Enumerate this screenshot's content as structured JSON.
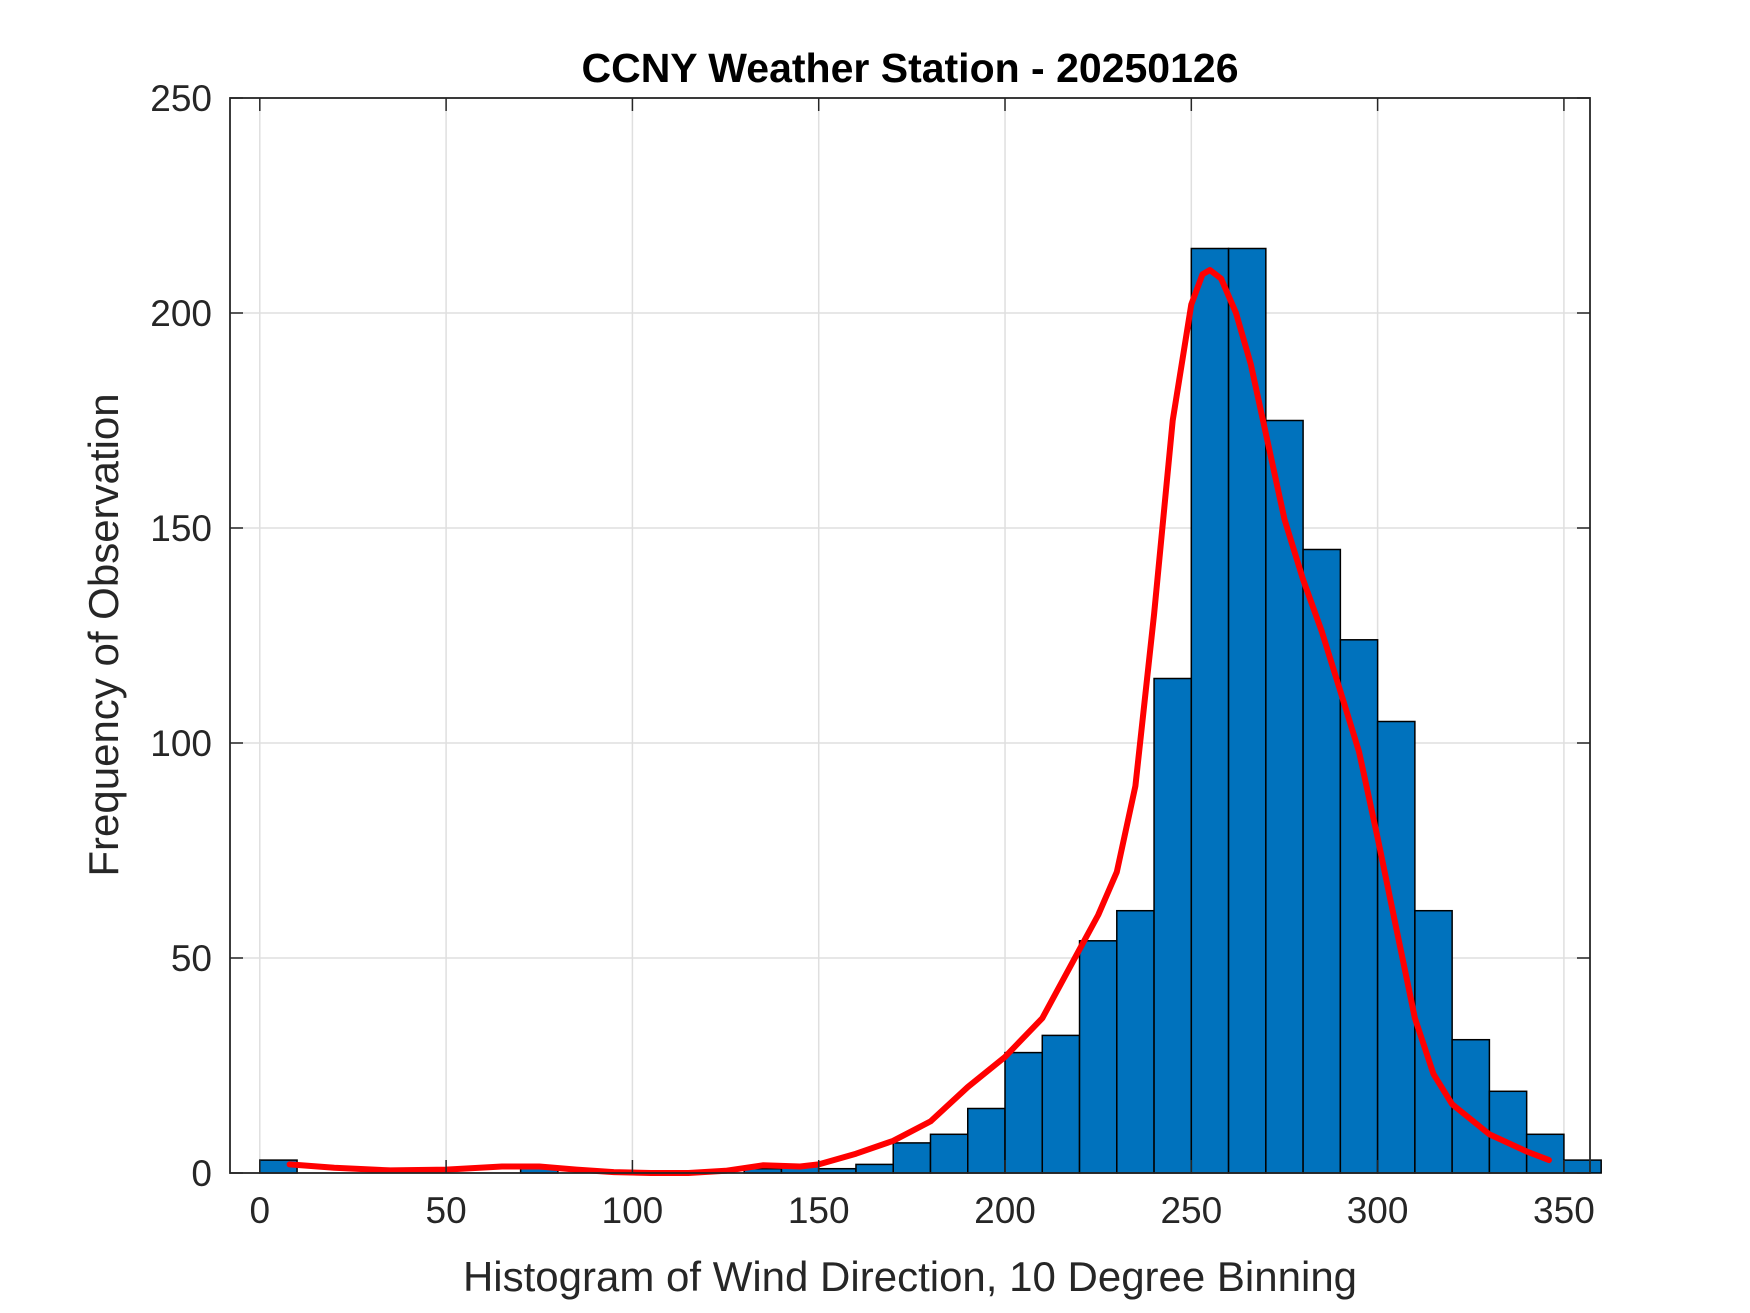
{
  "chart_data": {
    "type": "bar",
    "title": "CCNY Weather Station - 20250126",
    "xlabel": "Histogram of Wind Direction, 10 Degree Binning",
    "ylabel": "Frequency of Observation",
    "xlim": [
      -8,
      357
    ],
    "ylim": [
      0,
      250
    ],
    "xticks": [
      "0",
      "50",
      "100",
      "150",
      "200",
      "250",
      "300",
      "350"
    ],
    "yticks": [
      "0",
      "50",
      "100",
      "150",
      "200",
      "250"
    ],
    "grid": true,
    "bin_width": 10,
    "bin_edges": [
      0,
      10,
      20,
      30,
      40,
      50,
      60,
      70,
      80,
      90,
      100,
      110,
      120,
      130,
      140,
      150,
      160,
      170,
      180,
      190,
      200,
      210,
      220,
      230,
      240,
      250,
      260,
      270,
      280,
      290,
      300,
      310,
      320,
      330,
      340,
      350
    ],
    "values": [
      3,
      0,
      0,
      0,
      0,
      0,
      0,
      1,
      0,
      0,
      0,
      0,
      0,
      1,
      2,
      1,
      2,
      7,
      9,
      15,
      28,
      32,
      54,
      61,
      115,
      215,
      215,
      175,
      145,
      124,
      105,
      61,
      31,
      19,
      9,
      3
    ],
    "bar_color": "#0072BD",
    "curve_color": "#FF0000",
    "curve": {
      "x": [
        8,
        20,
        35,
        50,
        65,
        75,
        85,
        95,
        105,
        115,
        125,
        135,
        145,
        150,
        160,
        170,
        180,
        190,
        200,
        210,
        220,
        225,
        230,
        235,
        240,
        245,
        250,
        253,
        255,
        258,
        262,
        266,
        270,
        275,
        280,
        285,
        290,
        295,
        300,
        305,
        310,
        315,
        320,
        330,
        340,
        346
      ],
      "y": [
        2,
        1.2,
        0.6,
        0.8,
        1.5,
        1.5,
        0.8,
        0.2,
        0,
        0,
        0.5,
        1.8,
        1.5,
        2,
        4.5,
        7.5,
        12,
        20,
        27,
        36,
        52,
        60,
        70,
        90,
        130,
        175,
        202,
        209,
        210,
        208,
        200,
        188,
        172,
        152,
        138,
        126,
        112,
        98,
        78,
        57,
        36,
        23,
        16,
        9,
        5,
        3
      ]
    }
  }
}
